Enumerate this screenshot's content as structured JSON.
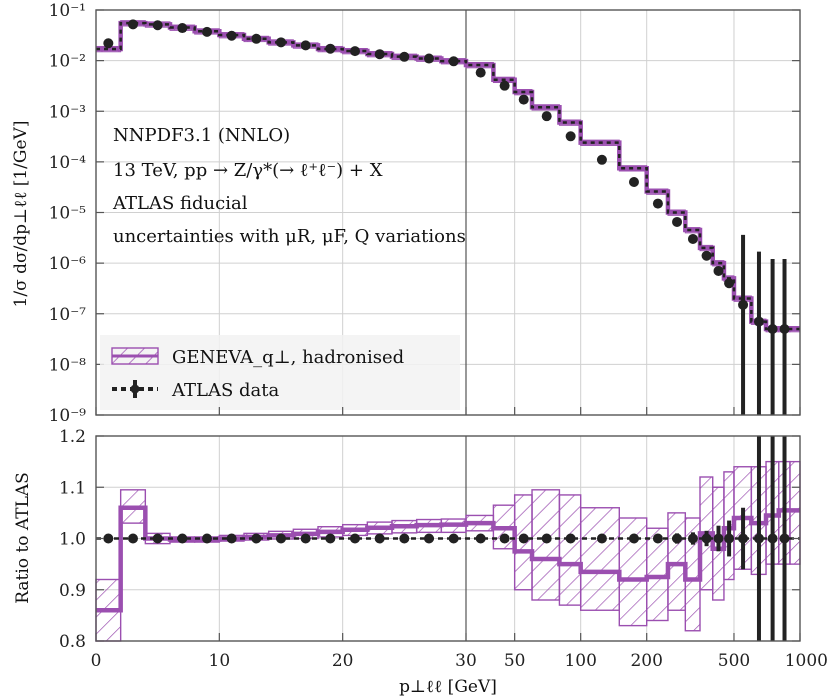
{
  "chart_data": [
    {
      "type": "line",
      "panel": "main",
      "ylabel": "1/σ dσ/dp⊥ℓℓ [1/GeV]",
      "yscale": "log",
      "ylim": [
        1e-09,
        0.1
      ],
      "ytick_labels": [
        "10⁻¹",
        "10⁻²",
        "10⁻³",
        "10⁻⁴",
        "10⁻⁵",
        "10⁻⁶",
        "10⁻⁷",
        "10⁻⁸",
        "10⁻⁹"
      ],
      "annotations": [
        "NNPDF3.1 (NNLO)",
        "13 TeV, pp → Z/γ*(→ ℓ⁺ℓ⁻) + X",
        "ATLAS fiducial",
        "uncertainties with μR, μF, Q variations"
      ],
      "legend_position": "bottom-left",
      "series": [
        {
          "name": "GENEVA_q⊥, hadronised",
          "style": "step-band",
          "color": "#9b4fb0",
          "bin_edges": [
            0,
            2,
            4,
            6,
            8,
            10,
            12,
            14,
            16,
            18,
            20,
            22,
            24,
            26,
            28,
            30,
            40,
            50,
            60,
            80,
            100,
            150,
            200,
            250,
            300,
            350,
            400,
            450,
            500,
            600,
            700,
            800,
            900,
            1000
          ],
          "values": [
            0.017,
            0.055,
            0.052,
            0.045,
            0.038,
            0.032,
            0.027,
            0.023,
            0.02,
            0.017,
            0.0155,
            0.0135,
            0.012,
            0.011,
            0.0098,
            0.0082,
            0.0042,
            0.0024,
            0.0012,
            0.0006,
            0.00024,
            7.5e-05,
            2.6e-05,
            1e-05,
            4.5e-06,
            2e-06,
            1e-06,
            5e-07,
            2e-07,
            7e-08,
            5e-08,
            5e-08,
            5e-08
          ]
        },
        {
          "name": "ATLAS data",
          "style": "points",
          "color": "#222222",
          "x": [
            1,
            3,
            5,
            7,
            9,
            11,
            13,
            15,
            17,
            19,
            21,
            23,
            25,
            27,
            29,
            35,
            45,
            55,
            70,
            90,
            125,
            175,
            225,
            275,
            325,
            375,
            425,
            475,
            550,
            650,
            750,
            850
          ],
          "y": [
            0.022,
            0.052,
            0.05,
            0.044,
            0.037,
            0.031,
            0.027,
            0.023,
            0.02,
            0.0172,
            0.0154,
            0.0134,
            0.0119,
            0.011,
            0.0097,
            0.0058,
            0.0032,
            0.0017,
            0.0008,
            0.00032,
            0.00011,
            4e-05,
            1.5e-05,
            6.5e-06,
            3e-06,
            1.4e-06,
            7e-07,
            4e-07,
            1.5e-07,
            7e-08,
            5e-08,
            5e-08
          ]
        }
      ]
    },
    {
      "type": "line",
      "panel": "ratio",
      "ylabel": "Ratio to ATLAS",
      "ylim": [
        0.8,
        1.2
      ],
      "ytick_labels": [
        "1.2",
        "1.1",
        "1.0",
        "0.9",
        "0.8"
      ],
      "xlabel": "p⊥ℓℓ [GeV]",
      "xscale": "piecewise-linear (0–30) / log (30–1000)",
      "xtick_labels": [
        "0",
        "10",
        "20",
        "30",
        "50",
        "100",
        "200",
        "500",
        "1000"
      ],
      "series": [
        {
          "name": "GENEVA_q⊥, hadronised",
          "style": "step-band",
          "color": "#9b4fb0",
          "bin_edges": [
            0,
            2,
            4,
            6,
            8,
            10,
            12,
            14,
            16,
            18,
            20,
            22,
            24,
            26,
            28,
            30,
            40,
            50,
            60,
            80,
            100,
            150,
            200,
            250,
            300,
            350,
            400,
            450,
            500,
            600,
            700,
            800,
            900,
            1000
          ],
          "central": [
            0.86,
            1.06,
            1.0,
            0.998,
            0.998,
            1.0,
            1.003,
            1.006,
            1.009,
            1.013,
            1.017,
            1.021,
            1.024,
            1.026,
            1.027,
            1.03,
            1.02,
            0.975,
            0.96,
            0.95,
            0.935,
            0.92,
            0.925,
            0.95,
            0.92,
            1.01,
            0.98,
            1.02,
            1.04,
            1.03,
            1.045,
            1.055,
            1.055
          ],
          "lower": [
            0.8,
            1.03,
            0.99,
            0.993,
            0.993,
            0.995,
            0.997,
            0.999,
            1.0,
            1.003,
            1.006,
            1.009,
            1.011,
            1.012,
            1.012,
            1.015,
            0.98,
            0.9,
            0.88,
            0.87,
            0.86,
            0.83,
            0.84,
            0.86,
            0.82,
            0.9,
            0.88,
            0.92,
            0.94,
            0.93,
            0.95,
            0.95,
            0.95
          ],
          "upper": [
            0.92,
            1.095,
            1.01,
            1.003,
            1.003,
            1.006,
            1.01,
            1.014,
            1.018,
            1.023,
            1.027,
            1.032,
            1.035,
            1.037,
            1.038,
            1.045,
            1.065,
            1.085,
            1.095,
            1.085,
            1.06,
            1.04,
            1.02,
            1.05,
            1.04,
            1.12,
            1.1,
            1.13,
            1.14,
            1.14,
            1.15,
            1.15,
            1.15
          ]
        },
        {
          "name": "ATLAS data",
          "style": "points",
          "color": "#222222",
          "x": [
            1,
            3,
            5,
            7,
            9,
            11,
            13,
            15,
            17,
            19,
            21,
            23,
            25,
            27,
            29,
            35,
            45,
            55,
            70,
            90,
            125,
            175,
            225,
            275,
            325,
            375,
            425,
            475,
            550,
            650,
            750,
            850
          ],
          "y": [
            1.0,
            1.0,
            1.0,
            1.0,
            1.0,
            1.0,
            1.0,
            1.0,
            1.0,
            1.0,
            1.0,
            1.0,
            1.0,
            1.0,
            1.0,
            1.0,
            1.0,
            1.0,
            1.0,
            1.0,
            1.0,
            1.0,
            1.0,
            1.0,
            1.0,
            1.0,
            1.0,
            1.0,
            1.0,
            1.0,
            1.0,
            1.0
          ],
          "err": [
            0.003,
            0.003,
            0.003,
            0.003,
            0.003,
            0.003,
            0.003,
            0.003,
            0.003,
            0.003,
            0.003,
            0.003,
            0.003,
            0.003,
            0.003,
            0.003,
            0.003,
            0.004,
            0.004,
            0.005,
            0.006,
            0.007,
            0.008,
            0.01,
            0.012,
            0.015,
            0.025,
            0.035,
            0.06,
            0.2,
            0.3,
            0.3
          ]
        }
      ]
    }
  ]
}
